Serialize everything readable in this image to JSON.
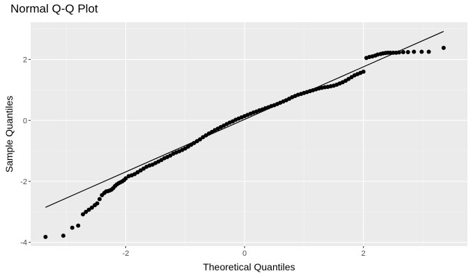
{
  "chart_data": {
    "type": "scatter",
    "title": "Normal Q-Q Plot",
    "xlabel": "Theoretical Quantiles",
    "ylabel": "Sample Quantiles",
    "xlim": [
      -3.6,
      3.75
    ],
    "ylim": [
      -4.12,
      3.22
    ],
    "x_ticks": [
      -2,
      0,
      2
    ],
    "x_tick_labels": [
      "-2",
      "0",
      "2"
    ],
    "y_ticks": [
      -4,
      -2,
      0,
      2
    ],
    "y_tick_labels": [
      "-4",
      "-2",
      "0",
      "2"
    ],
    "grid": true,
    "background": "#ebebeb",
    "grid_major_color": "#ffffff",
    "point_color": "#000000",
    "line_color": "#000000",
    "reference_line": {
      "x": [
        -3.35,
        3.35
      ],
      "y": [
        -2.85,
        2.92
      ]
    },
    "series": [
      {
        "x": [
          -3.35,
          -3.05,
          -2.9,
          -2.8,
          -2.72,
          -2.67,
          -2.62,
          -2.57,
          -2.52,
          -2.48,
          -2.44,
          -2.4,
          -2.36,
          -2.33,
          -2.3,
          -2.27,
          -2.24,
          -2.21,
          -2.18,
          -2.15,
          -2.12,
          -2.09,
          -2.06,
          -2.03,
          -2.0,
          -1.95,
          -1.9,
          -1.85,
          -1.8,
          -1.75,
          -1.7,
          -1.65,
          -1.6,
          -1.55,
          -1.5,
          -1.45,
          -1.4,
          -1.35,
          -1.3,
          -1.25,
          -1.2,
          -1.15,
          -1.1,
          -1.05,
          -1.0,
          -0.95,
          -0.9,
          -0.85,
          -0.8,
          -0.75,
          -0.7,
          -0.65,
          -0.6,
          -0.55,
          -0.5,
          -0.45,
          -0.4,
          -0.35,
          -0.3,
          -0.25,
          -0.2,
          -0.15,
          -0.1,
          -0.05,
          0.0,
          0.05,
          0.1,
          0.15,
          0.2,
          0.25,
          0.3,
          0.35,
          0.4,
          0.45,
          0.5,
          0.55,
          0.6,
          0.65,
          0.7,
          0.75,
          0.8,
          0.85,
          0.9,
          0.95,
          1.0,
          1.05,
          1.1,
          1.15,
          1.2,
          1.25,
          1.3,
          1.35,
          1.4,
          1.45,
          1.5,
          1.55,
          1.6,
          1.65,
          1.7,
          1.75,
          1.8,
          1.85,
          1.9,
          1.95,
          2.0,
          2.05,
          2.1,
          2.15,
          2.2,
          2.24,
          2.29,
          2.33,
          2.37,
          2.41,
          2.45,
          2.5,
          2.55,
          2.6,
          2.67,
          2.75,
          2.85,
          2.98,
          3.1,
          3.35
        ],
        "y": [
          -3.82,
          -3.78,
          -3.52,
          -3.45,
          -3.08,
          -3.0,
          -2.93,
          -2.86,
          -2.78,
          -2.72,
          -2.58,
          -2.45,
          -2.38,
          -2.33,
          -2.32,
          -2.3,
          -2.27,
          -2.22,
          -2.15,
          -2.1,
          -2.06,
          -2.03,
          -2.0,
          -1.96,
          -1.9,
          -1.83,
          -1.8,
          -1.76,
          -1.7,
          -1.64,
          -1.58,
          -1.52,
          -1.48,
          -1.45,
          -1.4,
          -1.35,
          -1.3,
          -1.24,
          -1.2,
          -1.15,
          -1.09,
          -1.05,
          -1.01,
          -0.97,
          -0.92,
          -0.86,
          -0.8,
          -0.74,
          -0.68,
          -0.62,
          -0.55,
          -0.49,
          -0.43,
          -0.38,
          -0.32,
          -0.27,
          -0.22,
          -0.17,
          -0.12,
          -0.07,
          -0.03,
          0.02,
          0.06,
          0.1,
          0.14,
          0.18,
          0.22,
          0.26,
          0.29,
          0.33,
          0.36,
          0.4,
          0.43,
          0.47,
          0.5,
          0.54,
          0.58,
          0.62,
          0.66,
          0.71,
          0.76,
          0.8,
          0.84,
          0.87,
          0.9,
          0.93,
          0.96,
          0.99,
          1.02,
          1.05,
          1.07,
          1.09,
          1.1,
          1.12,
          1.14,
          1.17,
          1.21,
          1.25,
          1.3,
          1.36,
          1.42,
          1.48,
          1.52,
          1.56,
          1.6,
          2.05,
          2.08,
          2.1,
          2.13,
          2.16,
          2.18,
          2.2,
          2.21,
          2.22,
          2.22,
          2.22,
          2.22,
          2.23,
          2.24,
          2.24,
          2.25,
          2.25,
          2.25,
          2.38
        ]
      }
    ]
  }
}
